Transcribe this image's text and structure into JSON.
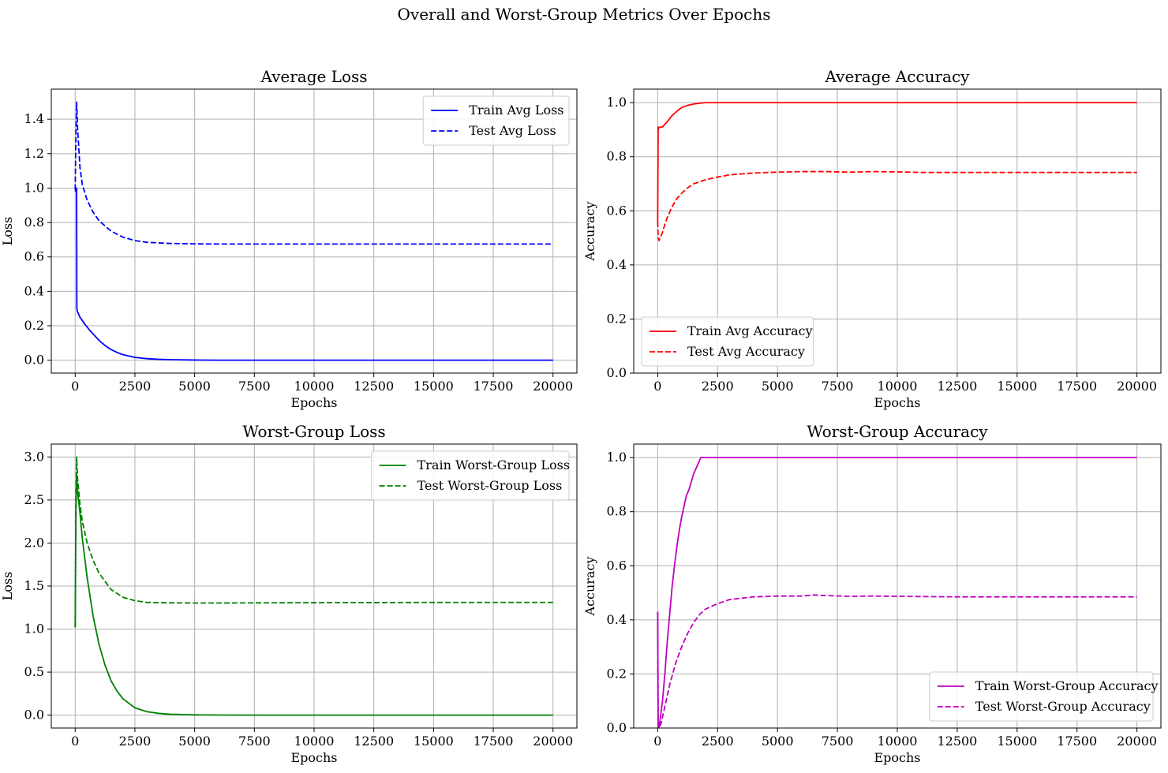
{
  "figure": {
    "title": "Overall and Worst-Group Metrics Over Epochs"
  },
  "chart_data": [
    {
      "type": "line",
      "title": "Average Loss",
      "xlabel": "Epochs",
      "ylabel": "Loss",
      "xlim": [
        -1000,
        21000
      ],
      "ylim": [
        -0.075,
        1.575
      ],
      "xticks": [
        0,
        2500,
        5000,
        7500,
        10000,
        12500,
        15000,
        17500,
        20000
      ],
      "yticks": [
        0.0,
        0.2,
        0.4,
        0.6,
        0.8,
        1.0,
        1.2,
        1.4
      ],
      "ytick_labels": [
        "0.0",
        "0.2",
        "0.4",
        "0.6",
        "0.8",
        "1.0",
        "1.2",
        "1.4"
      ],
      "grid": true,
      "legend_position": "upper right",
      "series": [
        {
          "name": "Train Avg Loss",
          "color": "#0000ff",
          "style": "solid",
          "x": [
            0,
            60,
            70,
            100,
            200,
            400,
            600,
            800,
            1000,
            1250,
            1500,
            1750,
            2000,
            2500,
            3000,
            3500,
            4000,
            5000,
            6000,
            8000,
            10000,
            12500,
            15000,
            17500,
            20000
          ],
          "y": [
            0.98,
            1.0,
            0.3,
            0.28,
            0.25,
            0.21,
            0.175,
            0.145,
            0.115,
            0.085,
            0.062,
            0.045,
            0.032,
            0.016,
            0.009,
            0.005,
            0.003,
            0.001,
            0.0,
            0.0,
            0.0,
            0.0,
            0.0,
            0.0,
            0.0
          ]
        },
        {
          "name": "Test Avg Loss",
          "color": "#0000ff",
          "style": "dashed",
          "x": [
            0,
            30,
            60,
            100,
            200,
            300,
            500,
            750,
            1000,
            1500,
            2000,
            2500,
            3000,
            4000,
            5000,
            6000,
            8000,
            10000,
            12500,
            15000,
            17500,
            20000
          ],
          "y": [
            0.99,
            1.3,
            1.5,
            1.35,
            1.12,
            1.02,
            0.93,
            0.86,
            0.81,
            0.75,
            0.715,
            0.695,
            0.685,
            0.678,
            0.676,
            0.675,
            0.675,
            0.675,
            0.675,
            0.675,
            0.675,
            0.675
          ]
        }
      ]
    },
    {
      "type": "line",
      "title": "Average Accuracy",
      "xlabel": "Epochs",
      "ylabel": "Accuracy",
      "xlim": [
        -1000,
        21000
      ],
      "ylim": [
        0.0,
        1.05
      ],
      "xticks": [
        0,
        2500,
        5000,
        7500,
        10000,
        12500,
        15000,
        17500,
        20000
      ],
      "yticks": [
        0.0,
        0.2,
        0.4,
        0.6,
        0.8,
        1.0
      ],
      "ytick_labels": [
        "0.0",
        "0.2",
        "0.4",
        "0.6",
        "0.8",
        "1.0"
      ],
      "grid": true,
      "legend_position": "lower left",
      "series": [
        {
          "name": "Train Avg Accuracy",
          "color": "#ff0000",
          "style": "solid",
          "x": [
            0,
            20,
            40,
            100,
            200,
            400,
            600,
            800,
            1000,
            1250,
            1500,
            1750,
            2000,
            2500,
            5000,
            7500,
            10000,
            12500,
            15000,
            17500,
            20000
          ],
          "y": [
            0.56,
            0.91,
            0.905,
            0.91,
            0.91,
            0.93,
            0.952,
            0.968,
            0.982,
            0.99,
            0.995,
            0.998,
            1.0,
            1.0,
            1.0,
            1.0,
            1.0,
            1.0,
            1.0,
            1.0,
            1.0
          ]
        },
        {
          "name": "Test Avg Accuracy",
          "color": "#ff0000",
          "style": "dashed",
          "x": [
            0,
            20,
            60,
            100,
            200,
            300,
            400,
            600,
            800,
            1000,
            1250,
            1500,
            2000,
            2500,
            3000,
            4000,
            5000,
            6000,
            7000,
            8000,
            9000,
            10000,
            11000,
            12500,
            15000,
            17500,
            20000
          ],
          "y": [
            0.56,
            0.5,
            0.49,
            0.5,
            0.52,
            0.55,
            0.575,
            0.615,
            0.645,
            0.665,
            0.685,
            0.7,
            0.715,
            0.725,
            0.733,
            0.74,
            0.743,
            0.745,
            0.745,
            0.743,
            0.745,
            0.744,
            0.742,
            0.742,
            0.742,
            0.742,
            0.742
          ]
        }
      ]
    },
    {
      "type": "line",
      "title": "Worst-Group Loss",
      "xlabel": "Epochs",
      "ylabel": "Loss",
      "xlim": [
        -1000,
        21000
      ],
      "ylim": [
        -0.15,
        3.15
      ],
      "xticks": [
        0,
        2500,
        5000,
        7500,
        10000,
        12500,
        15000,
        17500,
        20000
      ],
      "yticks": [
        0.0,
        0.5,
        1.0,
        1.5,
        2.0,
        2.5,
        3.0
      ],
      "ytick_labels": [
        "0.0",
        "0.5",
        "1.0",
        "1.5",
        "2.0",
        "2.5",
        "3.0"
      ],
      "grid": true,
      "legend_position": "upper right",
      "series": [
        {
          "name": "Train Worst-Group Loss",
          "color": "#008000",
          "style": "solid",
          "x": [
            0,
            30,
            60,
            100,
            200,
            300,
            500,
            750,
            1000,
            1250,
            1500,
            1750,
            2000,
            2500,
            3000,
            3500,
            4000,
            5000,
            6000,
            8000,
            10000,
            12500,
            15000,
            17500,
            20000
          ],
          "y": [
            1.02,
            2.3,
            2.8,
            2.6,
            2.35,
            2.05,
            1.6,
            1.15,
            0.82,
            0.58,
            0.4,
            0.28,
            0.19,
            0.085,
            0.04,
            0.02,
            0.01,
            0.003,
            0.001,
            0.0,
            0.0,
            0.0,
            0.0,
            0.0,
            0.0
          ]
        },
        {
          "name": "Test Worst-Group Loss",
          "color": "#008000",
          "style": "dashed",
          "x": [
            0,
            30,
            60,
            100,
            200,
            300,
            500,
            750,
            1000,
            1500,
            2000,
            2500,
            3000,
            4000,
            5000,
            6000,
            8000,
            10000,
            12500,
            15000,
            17500,
            20000
          ],
          "y": [
            1.02,
            2.5,
            3.0,
            2.75,
            2.45,
            2.25,
            2.0,
            1.8,
            1.65,
            1.46,
            1.37,
            1.33,
            1.31,
            1.305,
            1.303,
            1.303,
            1.305,
            1.307,
            1.308,
            1.31,
            1.31,
            1.31
          ]
        }
      ]
    },
    {
      "type": "line",
      "title": "Worst-Group Accuracy",
      "xlabel": "Epochs",
      "ylabel": "Accuracy",
      "xlim": [
        -1000,
        21000
      ],
      "ylim": [
        0.0,
        1.05
      ],
      "xticks": [
        0,
        2500,
        5000,
        7500,
        10000,
        12500,
        15000,
        17500,
        20000
      ],
      "yticks": [
        0.0,
        0.2,
        0.4,
        0.6,
        0.8,
        1.0
      ],
      "ytick_labels": [
        "0.0",
        "0.2",
        "0.4",
        "0.6",
        "0.8",
        "1.0"
      ],
      "grid": true,
      "legend_position": "lower right",
      "series": [
        {
          "name": "Train Worst-Group Accuracy",
          "color": "#bf00bf",
          "style": "solid",
          "x": [
            0,
            20,
            50,
            100,
            200,
            300,
            400,
            500,
            600,
            700,
            800,
            900,
            1000,
            1100,
            1200,
            1300,
            1400,
            1500,
            1600,
            1700,
            1800,
            2000,
            2500,
            5000,
            7500,
            10000,
            12500,
            15000,
            17500,
            20000
          ],
          "y": [
            0.43,
            0.0,
            0.0,
            0.03,
            0.1,
            0.2,
            0.32,
            0.42,
            0.52,
            0.6,
            0.67,
            0.73,
            0.78,
            0.82,
            0.86,
            0.88,
            0.91,
            0.94,
            0.96,
            0.98,
            1.0,
            1.0,
            1.0,
            1.0,
            1.0,
            1.0,
            1.0,
            1.0,
            1.0,
            1.0
          ]
        },
        {
          "name": "Test Worst-Group Accuracy",
          "color": "#bf00bf",
          "style": "dashed",
          "x": [
            0,
            20,
            60,
            150,
            300,
            500,
            750,
            1000,
            1250,
            1500,
            1750,
            2000,
            2500,
            3000,
            4000,
            5000,
            6000,
            6500,
            7000,
            8000,
            9000,
            10000,
            12500,
            15000,
            17500,
            20000
          ],
          "y": [
            0.43,
            0.03,
            0.0,
            0.02,
            0.08,
            0.16,
            0.24,
            0.3,
            0.35,
            0.39,
            0.42,
            0.44,
            0.46,
            0.475,
            0.485,
            0.488,
            0.488,
            0.492,
            0.49,
            0.487,
            0.488,
            0.487,
            0.485,
            0.485,
            0.485,
            0.485
          ]
        }
      ]
    }
  ]
}
